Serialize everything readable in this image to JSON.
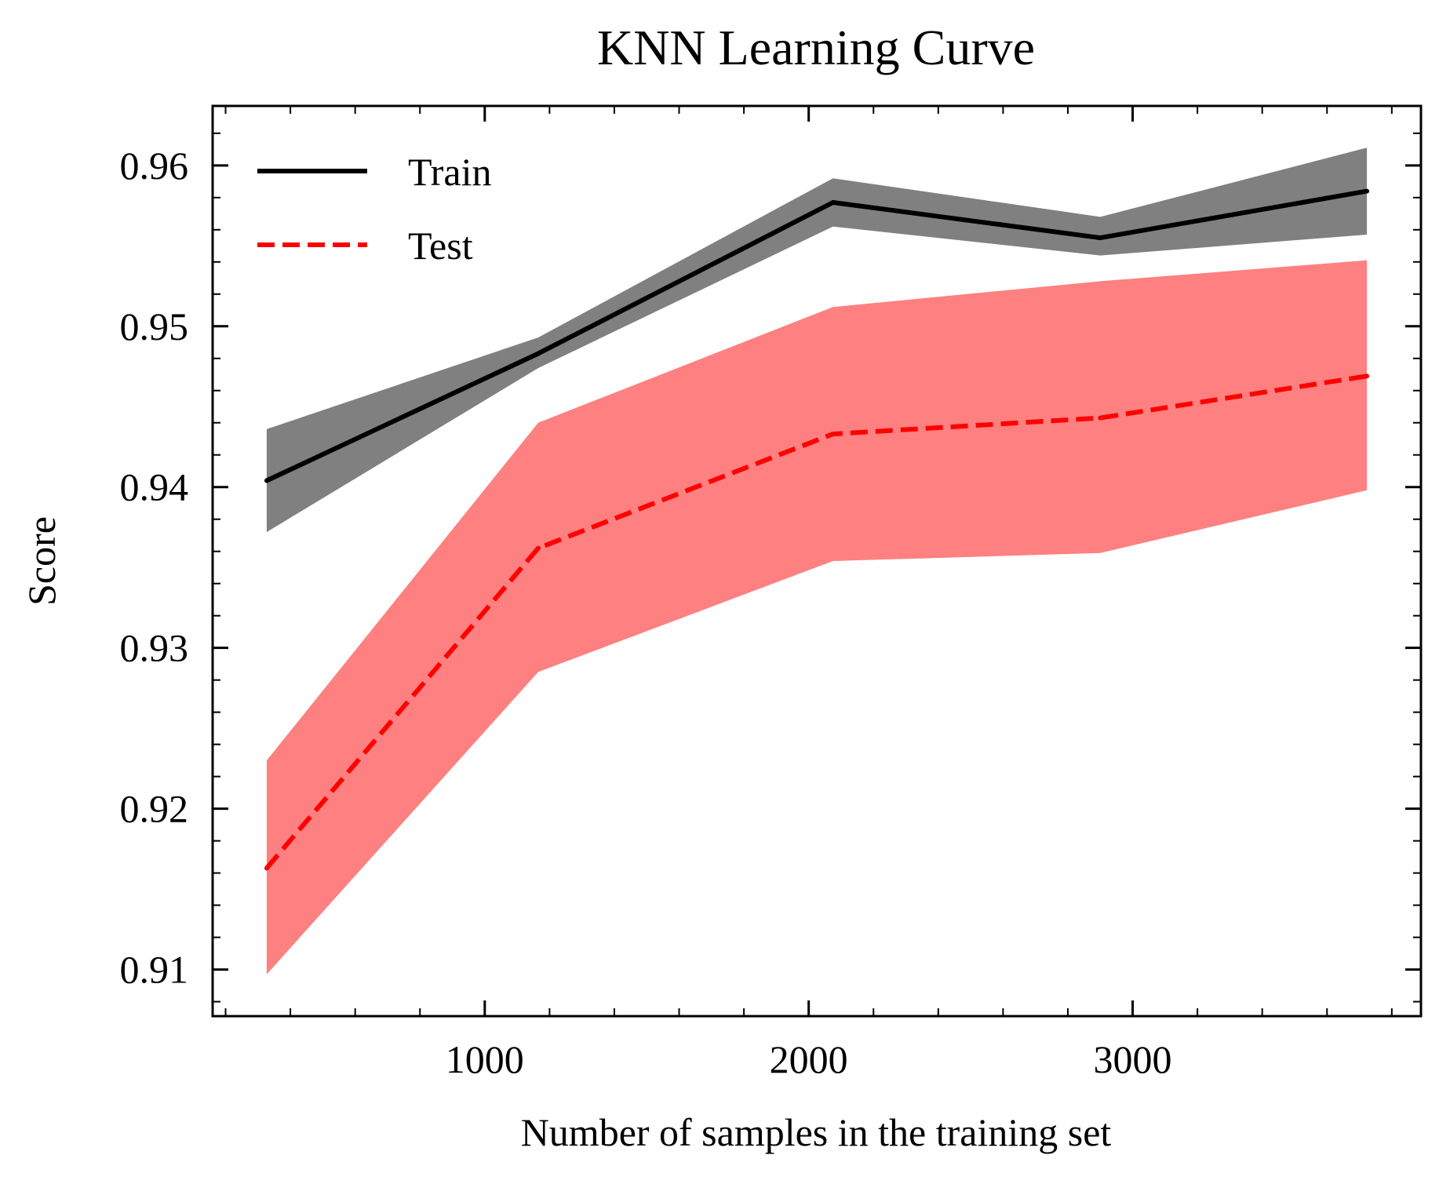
{
  "chart_data": {
    "type": "line",
    "title": "KNN Learning Curve",
    "xlabel": "Number of samples in the training set",
    "ylabel": "Score",
    "xlim": [
      160,
      3890
    ],
    "ylim": [
      0.9071,
      0.9637
    ],
    "xticks": [
      {
        "value": 1000,
        "label": "1000"
      },
      {
        "value": 2000,
        "label": "2000"
      },
      {
        "value": 3000,
        "label": "3000"
      }
    ],
    "yticks": [
      {
        "value": 0.91,
        "label": "0.91"
      },
      {
        "value": 0.92,
        "label": "0.92"
      },
      {
        "value": 0.93,
        "label": "0.93"
      },
      {
        "value": 0.94,
        "label": "0.94"
      },
      {
        "value": 0.95,
        "label": "0.95"
      },
      {
        "value": 0.96,
        "label": "0.96"
      }
    ],
    "x_minor_step": 200,
    "y_minor_step": 0.002,
    "grid": false,
    "legend_position": "top-left",
    "x": [
      327,
      1165,
      2075,
      2900,
      3723
    ],
    "series": [
      {
        "name": "Train",
        "color": "#000000",
        "dash": "solid",
        "band_color": "#808080",
        "values": [
          0.9404,
          0.9483,
          0.9577,
          0.9555,
          0.9584
        ],
        "band_lower": [
          0.9372,
          0.9474,
          0.9562,
          0.9544,
          0.9557
        ],
        "band_upper": [
          0.9436,
          0.9493,
          0.9592,
          0.9568,
          0.9611
        ]
      },
      {
        "name": "Test",
        "color": "#ff0000",
        "dash": "dashed",
        "band_color": "#ff8080",
        "values": [
          0.9163,
          0.9362,
          0.9433,
          0.9443,
          0.9469
        ],
        "band_lower": [
          0.9097,
          0.9285,
          0.9354,
          0.9359,
          0.9398
        ],
        "band_upper": [
          0.923,
          0.944,
          0.9512,
          0.9528,
          0.9541
        ]
      }
    ]
  }
}
